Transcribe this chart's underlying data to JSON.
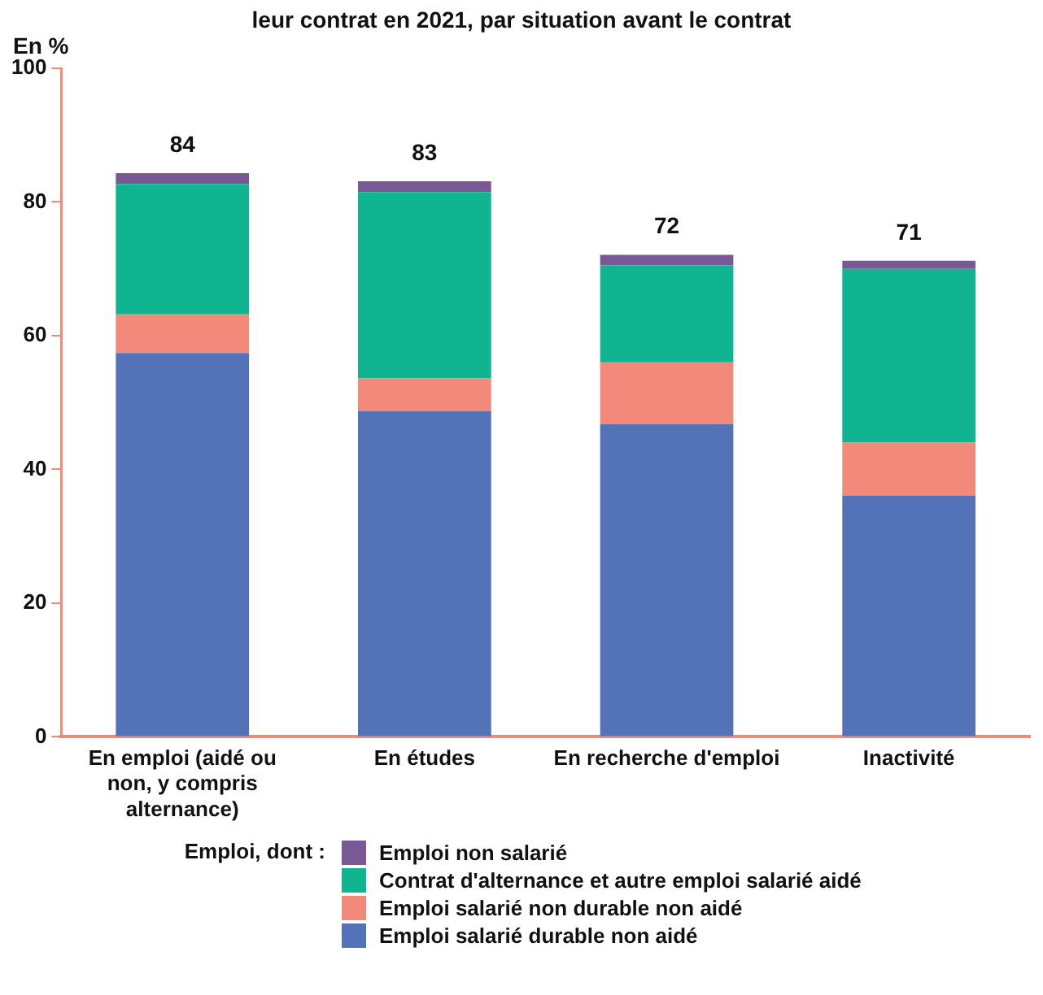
{
  "chart_data": {
    "type": "bar",
    "stacked": true,
    "title": "leur contrat en 2021, par situation avant le contrat",
    "ylabel": "En %",
    "legend_title": "Emploi, dont :",
    "categories": [
      "En emploi (aidé ou non, y compris alternance)",
      "En études",
      "En recherche d'emploi",
      "Inactivité"
    ],
    "series": [
      {
        "name": "Emploi salarié durable non aidé",
        "color": "#5472b8",
        "values": [
          57.4,
          48.7,
          46.8,
          36.1
        ]
      },
      {
        "name": "Emploi salarié non durable non aidé",
        "color": "#f3897b",
        "values": [
          5.8,
          4.9,
          9.2,
          7.9
        ]
      },
      {
        "name": "Contrat d'alternance et autre emploi salarié aidé",
        "color": "#10b491",
        "values": [
          19.5,
          27.9,
          14.5,
          26.0
        ]
      },
      {
        "name": "Emploi non salarié",
        "color": "#7a5896",
        "values": [
          1.6,
          1.6,
          1.6,
          1.2
        ]
      }
    ],
    "totals": [
      "84",
      "83",
      "72",
      "71"
    ],
    "ylim": [
      0,
      100
    ],
    "yticks": [
      0,
      20,
      40,
      60,
      80,
      100
    ],
    "grid": false,
    "legend": "bottom"
  }
}
